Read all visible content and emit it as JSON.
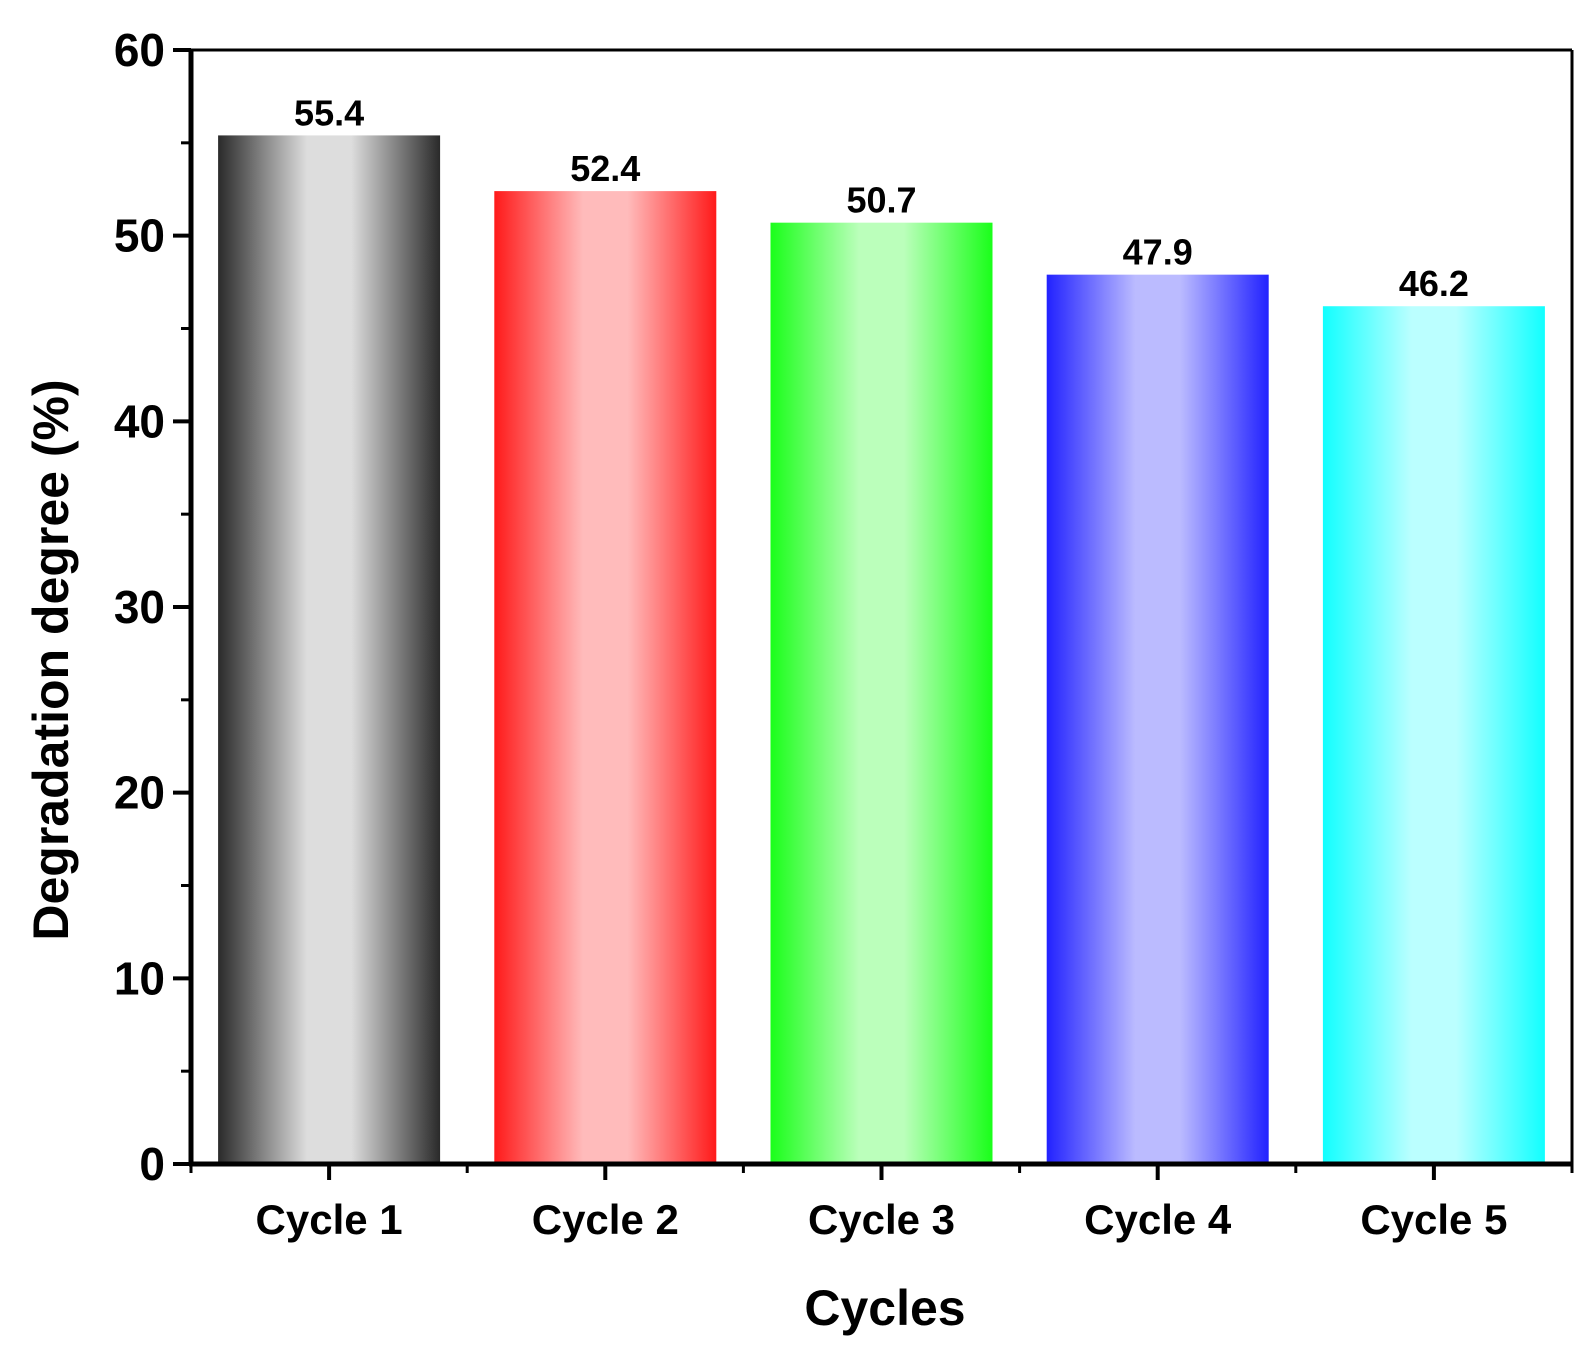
{
  "chart_data": {
    "type": "bar",
    "title": "",
    "xlabel": "Cycles",
    "ylabel": "Degradation degree (%)",
    "ylim": [
      0,
      60
    ],
    "yticks": [
      "0",
      "10",
      "20",
      "30",
      "40",
      "50",
      "60"
    ],
    "grid": false,
    "categories": [
      "Cycle 1",
      "Cycle 2",
      "Cycle 3",
      "Cycle 4",
      "Cycle 5"
    ],
    "values": [
      55.4,
      52.4,
      50.7,
      47.9,
      46.2
    ],
    "data_labels": [
      "55.4",
      "52.4",
      "50.7",
      "47.9",
      "46.2"
    ],
    "bar_colors": [
      "#2a2a2a",
      "#ff1a1a",
      "#1aff1a",
      "#2222ff",
      "#11ffff"
    ],
    "bar_highlight_colors": [
      "#dddddd",
      "#ffbbbb",
      "#bbffbb",
      "#bbbbff",
      "#bbffff"
    ]
  }
}
